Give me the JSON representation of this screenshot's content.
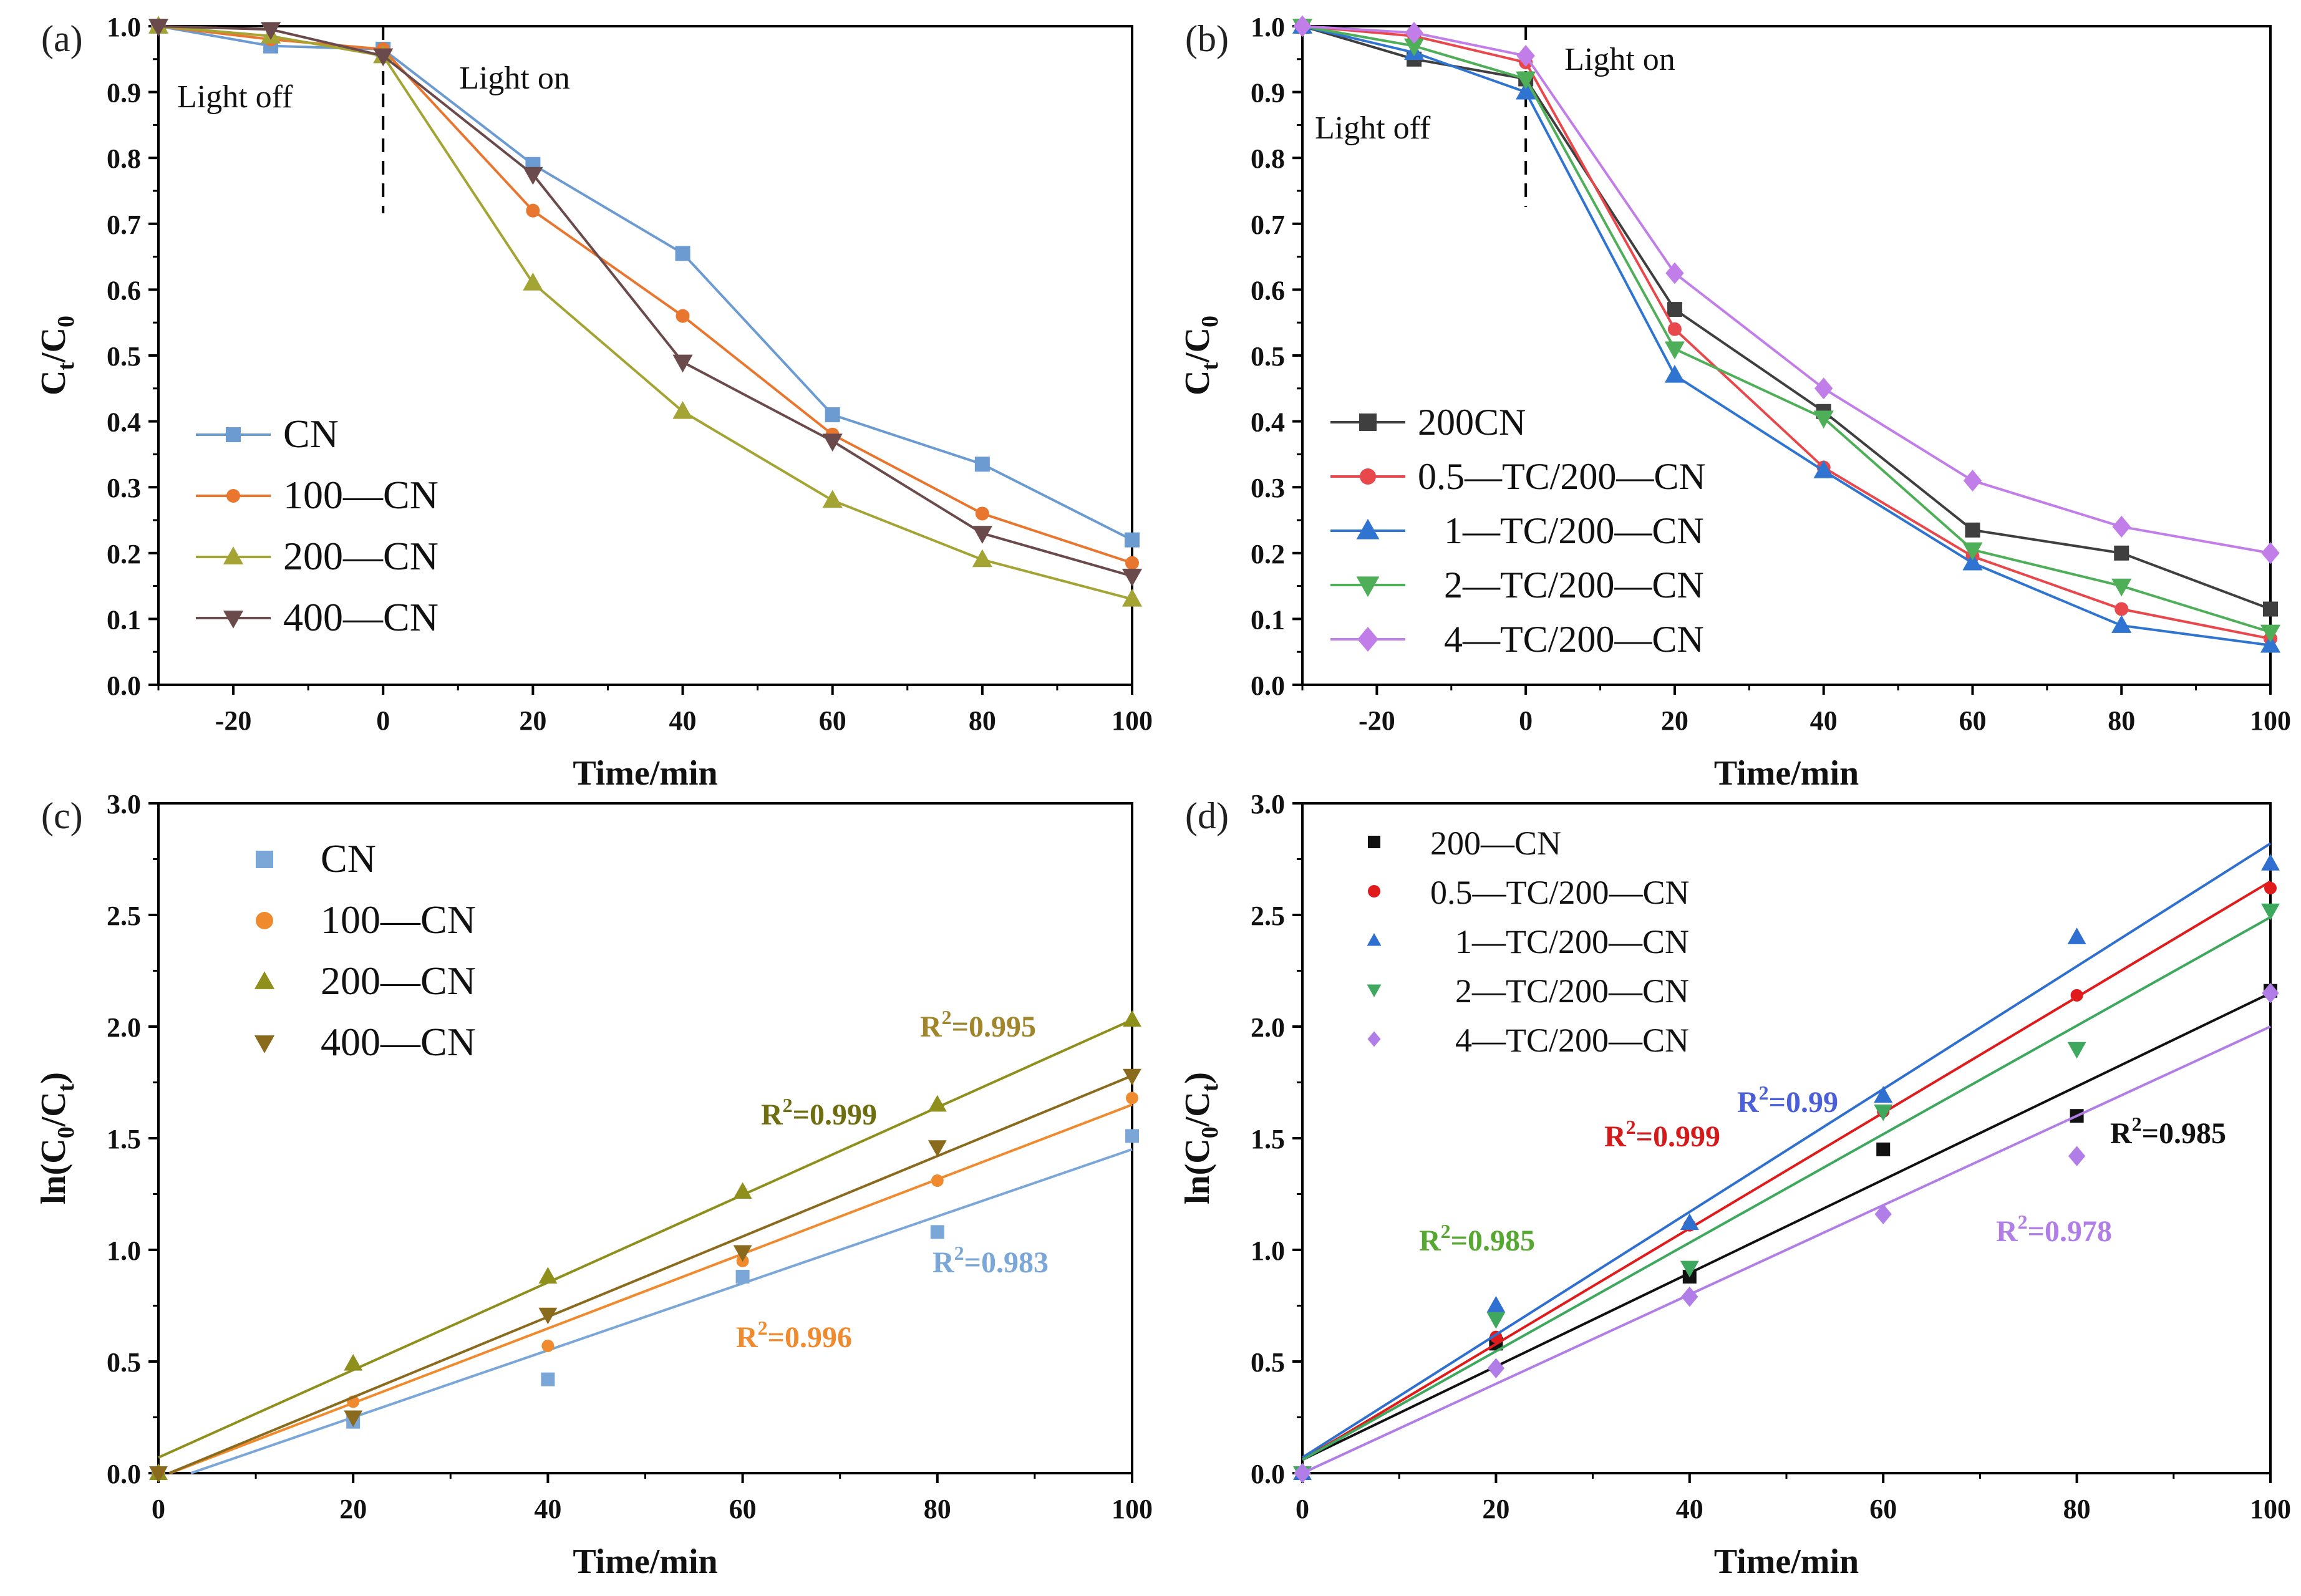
{
  "colors": {
    "CN": "#6b9bd1",
    "100-CN": "#e8762f",
    "200-CN": "#a3a434",
    "400-CN": "#6a4a4a",
    "200CN": "#3f3f3f",
    "0.5-TC": "#e8484c",
    "1-TC": "#2f74d0",
    "2-TC": "#4fae58",
    "4-TC": "#c17ee8",
    "c_CN": "#7aa7d8",
    "c_100": "#f08a2e",
    "c_200": "#8f8f1c",
    "c_400": "#8a6a1c",
    "d_200": "#111111",
    "d_05": "#e01b1b",
    "d_1": "#2f6fd0",
    "d_2": "#3ea95e",
    "d_4": "#b07ee6",
    "r2_c_CN": "#7aa7d8",
    "r2_c_100": "#f08a2e",
    "r2_c_200": "#6e6e10",
    "r2_c_400": "#a0852a",
    "r2_d_1": "#4a5fd8",
    "r2_d_05": "#d41a1a",
    "r2_d_2": "#56a832",
    "r2_d_200": "#111111",
    "r2_d_4": "#b07ee6"
  },
  "chart_data": [
    {
      "panel": "a",
      "panel_label": "(a)",
      "type": "line",
      "xlabel": "Time/min",
      "ylabel": "Ct/C0",
      "xlim": [
        -30,
        100
      ],
      "ylim": [
        0,
        1.0
      ],
      "xticks": [
        -20,
        0,
        20,
        40,
        60,
        80,
        100
      ],
      "yticks": [
        0.0,
        0.1,
        0.2,
        0.3,
        0.4,
        0.5,
        0.6,
        0.7,
        0.8,
        0.9,
        1.0
      ],
      "ytick_labels": [
        "0.0",
        "0.1",
        "0.2",
        "0.3",
        "0.4",
        "0.5",
        "0.6",
        "0.7",
        "0.8",
        "0.9",
        "1.0"
      ],
      "annotations": {
        "light_off": "Light off",
        "light_on": "Light on"
      },
      "legend_position": "lower-left",
      "series": [
        {
          "name": "CN",
          "color_key": "CN",
          "marker": "square",
          "x": [
            -30,
            -15,
            0,
            20,
            40,
            60,
            80,
            100
          ],
          "y": [
            1.0,
            0.97,
            0.965,
            0.79,
            0.655,
            0.41,
            0.335,
            0.22
          ]
        },
        {
          "name": "100—CN",
          "color_key": "100-CN",
          "marker": "circle",
          "x": [
            -30,
            -15,
            0,
            20,
            40,
            60,
            80,
            100
          ],
          "y": [
            1.0,
            0.98,
            0.965,
            0.72,
            0.56,
            0.38,
            0.26,
            0.185
          ]
        },
        {
          "name": "200—CN",
          "color_key": "200-CN",
          "marker": "triangle-up",
          "x": [
            -30,
            -15,
            0,
            20,
            40,
            60,
            80,
            100
          ],
          "y": [
            1.0,
            0.985,
            0.955,
            0.61,
            0.415,
            0.28,
            0.19,
            0.13
          ]
        },
        {
          "name": "400—CN",
          "color_key": "400-CN",
          "marker": "triangle-down",
          "x": [
            -30,
            -15,
            0,
            20,
            40,
            60,
            80,
            100
          ],
          "y": [
            1.0,
            0.995,
            0.955,
            0.775,
            0.49,
            0.37,
            0.23,
            0.165
          ]
        }
      ]
    },
    {
      "panel": "b",
      "panel_label": "(b)",
      "type": "line",
      "xlabel": "Time/min",
      "ylabel": "Ct/C0",
      "xlim": [
        -30,
        100
      ],
      "ylim": [
        0,
        1.0
      ],
      "xticks": [
        -20,
        0,
        20,
        40,
        60,
        80,
        100
      ],
      "yticks": [
        0.0,
        0.1,
        0.2,
        0.3,
        0.4,
        0.5,
        0.6,
        0.7,
        0.8,
        0.9,
        1.0
      ],
      "ytick_labels": [
        "0.0",
        "0.1",
        "0.2",
        "0.3",
        "0.4",
        "0.5",
        "0.6",
        "0.7",
        "0.8",
        "0.9",
        "1.0"
      ],
      "annotations": {
        "light_off": "Light off",
        "light_on": "Light on"
      },
      "legend_position": "lower-left",
      "series": [
        {
          "name": "200CN",
          "color_key": "200CN",
          "marker": "square",
          "x": [
            -30,
            -15,
            0,
            20,
            40,
            60,
            80,
            100
          ],
          "y": [
            1.0,
            0.95,
            0.92,
            0.57,
            0.415,
            0.235,
            0.2,
            0.115
          ]
        },
        {
          "name": "0.5—TC/200—CN",
          "color_key": "0.5-TC",
          "marker": "circle",
          "x": [
            -30,
            -15,
            0,
            20,
            40,
            60,
            80,
            100
          ],
          "y": [
            1.0,
            0.985,
            0.945,
            0.54,
            0.33,
            0.195,
            0.115,
            0.07
          ]
        },
        {
          "name": "1—TC/200—CN",
          "color_key": "1-TC",
          "marker": "triangle-up",
          "x": [
            -30,
            -15,
            0,
            20,
            40,
            60,
            80,
            100
          ],
          "y": [
            1.0,
            0.96,
            0.9,
            0.47,
            0.325,
            0.185,
            0.09,
            0.06
          ]
        },
        {
          "name": "2—TC/200—CN",
          "color_key": "2-TC",
          "marker": "triangle-down",
          "x": [
            -30,
            -15,
            0,
            20,
            40,
            60,
            80,
            100
          ],
          "y": [
            1.0,
            0.97,
            0.92,
            0.51,
            0.405,
            0.205,
            0.15,
            0.08
          ]
        },
        {
          "name": "4—TC/200—CN",
          "color_key": "4-TC",
          "marker": "diamond",
          "x": [
            -30,
            -15,
            0,
            20,
            40,
            60,
            80,
            100
          ],
          "y": [
            1.0,
            0.99,
            0.955,
            0.625,
            0.45,
            0.31,
            0.24,
            0.2
          ]
        }
      ]
    },
    {
      "panel": "c",
      "panel_label": "(c)",
      "type": "scatter",
      "xlabel": "Time/min",
      "ylabel": "ln(C0/Ct)",
      "xlim": [
        0,
        100
      ],
      "ylim": [
        0,
        3.0
      ],
      "xticks": [
        0,
        20,
        40,
        60,
        80,
        100
      ],
      "yticks": [
        0.0,
        0.5,
        1.0,
        1.5,
        2.0,
        2.5,
        3.0
      ],
      "ytick_labels": [
        "0.0",
        "0.5",
        "1.0",
        "1.5",
        "2.0",
        "2.5",
        "3.0"
      ],
      "legend_position": "top-left",
      "series": [
        {
          "name": "CN",
          "color_key": "c_CN",
          "marker": "square",
          "x": [
            0,
            20,
            40,
            60,
            80,
            100
          ],
          "y": [
            0.0,
            0.23,
            0.42,
            0.88,
            1.08,
            1.51
          ],
          "fit": [
            -0.05,
            0.015
          ],
          "r2": "=0.983",
          "r2_color_key": "r2_c_CN"
        },
        {
          "name": "100—CN",
          "color_key": "c_100",
          "marker": "circle",
          "x": [
            0,
            20,
            40,
            60,
            80,
            100
          ],
          "y": [
            0.0,
            0.32,
            0.57,
            0.95,
            1.31,
            1.68
          ],
          "fit": [
            -0.02,
            0.0167
          ],
          "r2": "=0.996",
          "r2_color_key": "r2_c_100"
        },
        {
          "name": "200—CN",
          "color_key": "c_200",
          "marker": "triangle-up",
          "x": [
            0,
            20,
            40,
            60,
            80,
            100
          ],
          "y": [
            0.0,
            0.49,
            0.88,
            1.26,
            1.65,
            2.03
          ],
          "fit": [
            0.07,
            0.0196
          ],
          "r2": "=0.999",
          "r2_color_key": "r2_c_200"
        },
        {
          "name": "400—CN",
          "color_key": "c_400",
          "marker": "triangle-down",
          "x": [
            0,
            20,
            40,
            60,
            80,
            100
          ],
          "y": [
            0.0,
            0.25,
            0.71,
            0.99,
            1.46,
            1.78
          ],
          "fit": [
            -0.02,
            0.018
          ],
          "r2": "=0.995",
          "r2_color_key": "r2_c_400"
        }
      ]
    },
    {
      "panel": "d",
      "panel_label": "(d)",
      "type": "scatter",
      "xlabel": "Time/min",
      "ylabel": "ln(C0/Ct)",
      "xlim": [
        0,
        100
      ],
      "ylim": [
        0,
        3.0
      ],
      "xticks": [
        0,
        20,
        40,
        60,
        80,
        100
      ],
      "yticks": [
        0.0,
        0.5,
        1.0,
        1.5,
        2.0,
        2.5,
        3.0
      ],
      "ytick_labels": [
        "0.0",
        "0.5",
        "1.0",
        "1.5",
        "2.0",
        "2.5",
        "3.0"
      ],
      "legend_position": "top-left",
      "series": [
        {
          "name": "200—CN",
          "color_key": "d_200",
          "marker": "square",
          "x": [
            0,
            20,
            40,
            60,
            80,
            100
          ],
          "y": [
            0.0,
            0.58,
            0.88,
            1.45,
            1.6,
            2.16
          ],
          "fit": [
            0.06,
            0.0209
          ],
          "r2": "=0.985",
          "r2_color_key": "r2_d_200"
        },
        {
          "name": "0.5—TC/200—CN",
          "color_key": "d_05",
          "marker": "circle",
          "x": [
            0,
            20,
            40,
            60,
            80,
            100
          ],
          "y": [
            0.0,
            0.61,
            1.11,
            1.62,
            2.14,
            2.62
          ],
          "fit": [
            0.06,
            0.0259
          ],
          "r2": "=0.999",
          "r2_color_key": "r2_d_05"
        },
        {
          "name": "1—TC/200—CN",
          "color_key": "d_1",
          "marker": "triangle-up",
          "x": [
            0,
            20,
            40,
            60,
            80,
            100
          ],
          "y": [
            0.0,
            0.75,
            1.12,
            1.69,
            2.4,
            2.73
          ],
          "fit": [
            0.07,
            0.0275
          ],
          "r2": "=0.99",
          "r2_color_key": "r2_d_1"
        },
        {
          "name": "2—TC/200—CN",
          "color_key": "d_2",
          "marker": "triangle-down",
          "x": [
            0,
            20,
            40,
            60,
            80,
            100
          ],
          "y": [
            0.0,
            0.69,
            0.92,
            1.62,
            1.9,
            2.52
          ],
          "fit": [
            0.06,
            0.0243
          ],
          "r2": "=0.985",
          "r2_color_key": "r2_d_2"
        },
        {
          "name": "4—TC/200—CN",
          "color_key": "d_4",
          "marker": "diamond",
          "x": [
            0,
            20,
            40,
            60,
            80,
            100
          ],
          "y": [
            0.0,
            0.47,
            0.79,
            1.16,
            1.42,
            2.15
          ],
          "fit": [
            0.0,
            0.02
          ],
          "r2": "=0.978",
          "r2_color_key": "r2_d_4"
        }
      ]
    }
  ]
}
